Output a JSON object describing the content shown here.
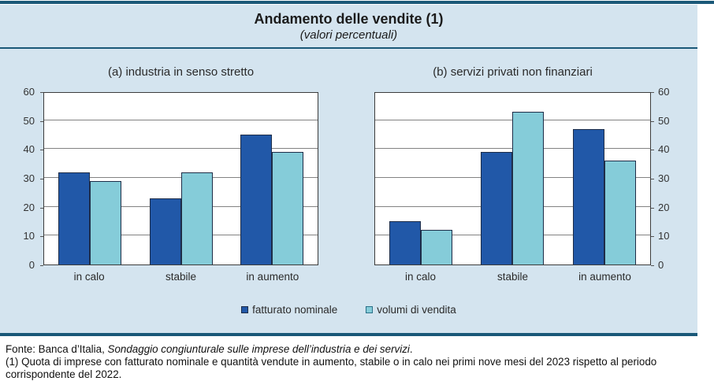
{
  "header": {
    "title": "Andamento delle vendite (1)",
    "subtitle": "(valori percentuali)"
  },
  "chart_data": [
    {
      "type": "bar",
      "panel_label": "(a) industria in senso stretto",
      "categories": [
        "in calo",
        "stabile",
        "in aumento"
      ],
      "series": [
        {
          "name": "fatturato nominale",
          "color": "#2158a8",
          "values": [
            32,
            23,
            45
          ]
        },
        {
          "name": "volumi di vendita",
          "color": "#85ccd9",
          "values": [
            29,
            32,
            39
          ]
        }
      ],
      "ylabel": "",
      "xlabel": "",
      "ylim": [
        0,
        60
      ],
      "ytick_step": 10,
      "yaxis_side": "left",
      "grid": true
    },
    {
      "type": "bar",
      "panel_label": "(b) servizi privati non finanziari",
      "categories": [
        "in calo",
        "stabile",
        "in aumento"
      ],
      "series": [
        {
          "name": "fatturato nominale",
          "color": "#2158a8",
          "values": [
            15,
            39,
            47
          ]
        },
        {
          "name": "volumi di vendita",
          "color": "#85ccd9",
          "values": [
            12,
            53,
            36
          ]
        }
      ],
      "ylabel": "",
      "xlabel": "",
      "ylim": [
        0,
        60
      ],
      "ytick_step": 10,
      "yaxis_side": "right",
      "grid": true
    }
  ],
  "legend": {
    "items": [
      {
        "label": "fatturato nominale",
        "color": "#2158a8",
        "border": "#1e2d48"
      },
      {
        "label": "volumi di vendita",
        "color": "#85ccd9",
        "border": "#2a7088"
      }
    ]
  },
  "footer": {
    "fonte_prefix": "Fonte: Banca d’Italia, ",
    "fonte_italic": "Sondaggio congiunturale sulle imprese dell’industria e dei servizi",
    "fonte_suffix": ".",
    "note": "(1) Quota di imprese con fatturato nominale e quantità vendute in aumento, stabile o in calo nei primi nove mesi del 2023 rispetto al periodo corrispondente del 2022."
  },
  "colors": {
    "accent_rule": "#1a5878",
    "panel_background": "#d4e4ef",
    "plot_background": "#ffffff",
    "gridline": "#828282",
    "series_dark_blue": "#2158a8",
    "series_light_cyan": "#85ccd9"
  }
}
